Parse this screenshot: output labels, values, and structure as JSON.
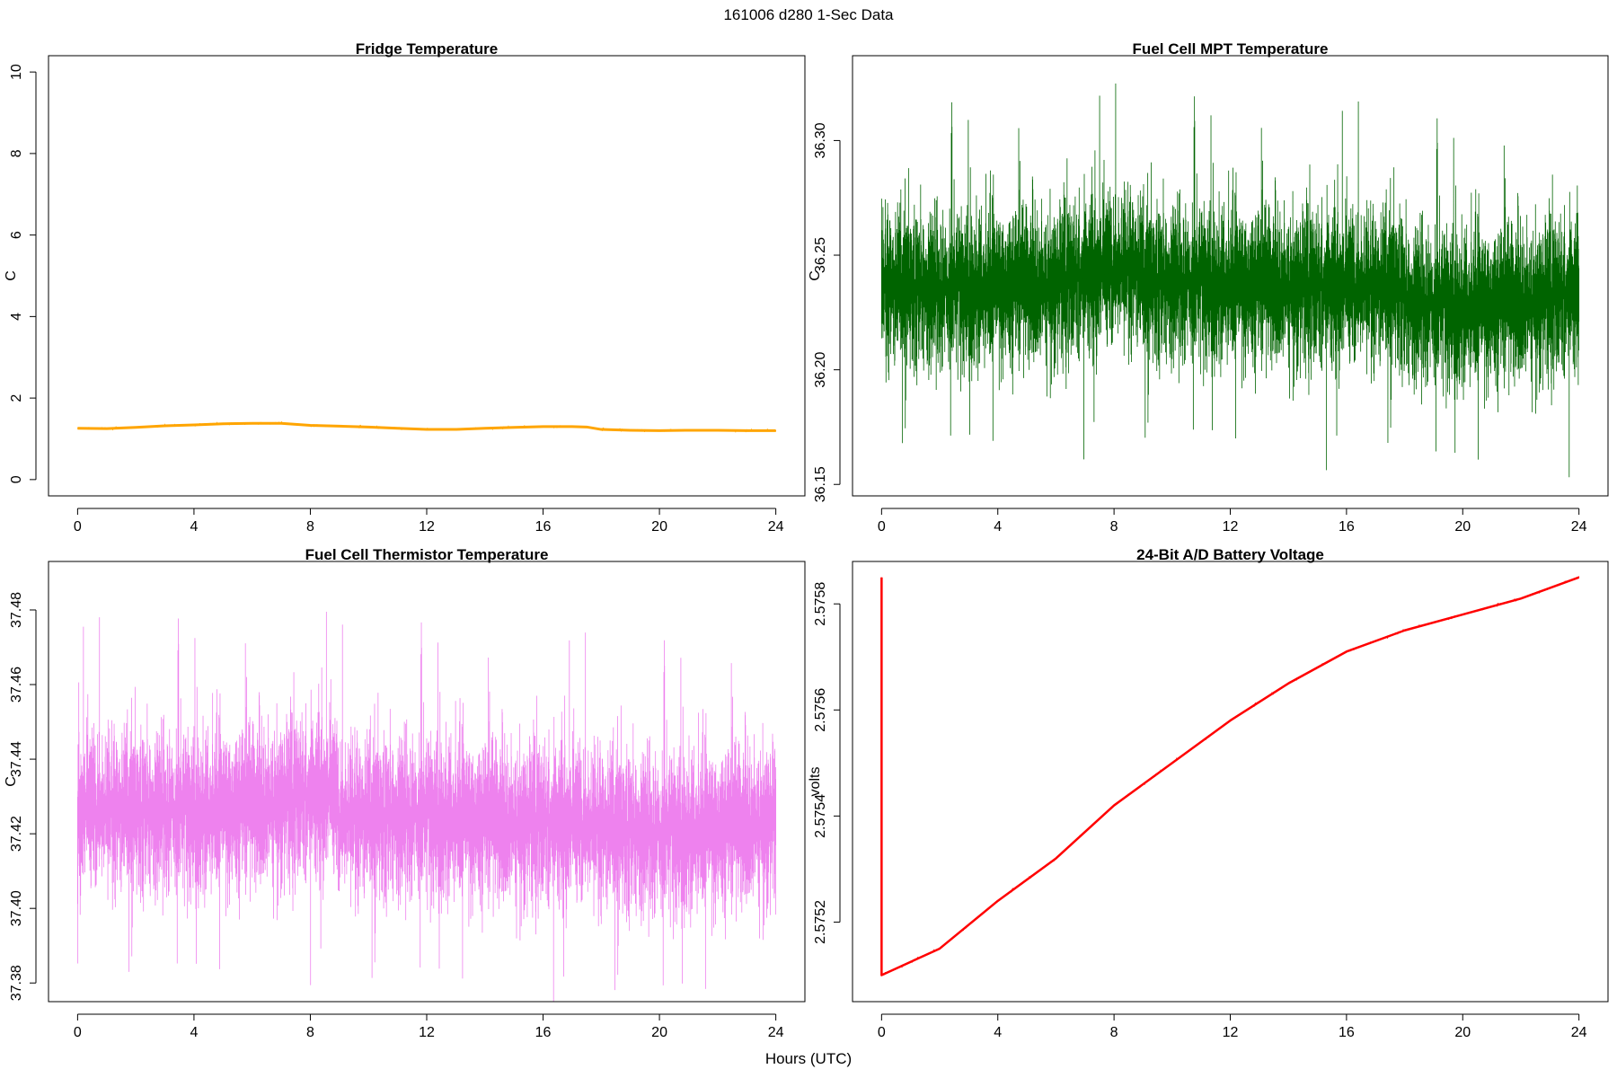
{
  "suptitle": "161006   d280   1-Sec Data",
  "xlabel": "Hours (UTC)",
  "chart_data": [
    {
      "type": "line",
      "title": "Fridge Temperature",
      "xlabel": "Hours (UTC)",
      "ylabel": "C",
      "xlim": [
        -1.0,
        25.0
      ],
      "ylim": [
        -0.4,
        10.4
      ],
      "xticks": [
        0,
        4,
        8,
        12,
        16,
        20,
        24
      ],
      "yticks": [
        0,
        2,
        4,
        6,
        8,
        10
      ],
      "ytick_labels": [
        "0",
        "2",
        "4",
        "6",
        "8",
        "10"
      ],
      "grid": false,
      "series": [
        {
          "color": "#FFA500",
          "noise": 0.02,
          "spike": null,
          "x": [
            0,
            1,
            2,
            3,
            4,
            5,
            6,
            7,
            8,
            9,
            10,
            11,
            12,
            13,
            14,
            15,
            16,
            17,
            17.5,
            18,
            19,
            20,
            21,
            22,
            23,
            24
          ],
          "y": [
            1.26,
            1.25,
            1.28,
            1.32,
            1.34,
            1.37,
            1.38,
            1.38,
            1.33,
            1.31,
            1.29,
            1.26,
            1.23,
            1.23,
            1.26,
            1.28,
            1.3,
            1.3,
            1.29,
            1.23,
            1.21,
            1.2,
            1.21,
            1.21,
            1.2,
            1.2
          ]
        }
      ]
    },
    {
      "type": "line",
      "title": "Fuel Cell MPT Temperature",
      "xlabel": "Hours (UTC)",
      "ylabel": "C",
      "xlim": [
        -1.0,
        25.0
      ],
      "ylim": [
        36.145,
        36.337
      ],
      "xticks": [
        0,
        4,
        8,
        12,
        16,
        20,
        24
      ],
      "yticks": [
        36.15,
        36.2,
        36.25,
        36.3
      ],
      "ytick_labels": [
        "36.15",
        "36.20",
        "36.25",
        "36.30"
      ],
      "grid": false,
      "series": [
        {
          "color": "#006400",
          "noise": 0.033,
          "spike": null,
          "x": [
            0,
            2,
            4,
            6,
            8,
            8.8,
            9,
            12,
            14,
            16,
            17.9,
            18,
            20,
            24
          ],
          "y": [
            36.236,
            36.235,
            36.237,
            36.238,
            36.243,
            36.244,
            36.238,
            36.238,
            36.237,
            36.235,
            36.236,
            36.229,
            36.228,
            36.233
          ]
        }
      ]
    },
    {
      "type": "line",
      "title": "Fuel Cell Thermistor Temperature",
      "xlabel": "Hours (UTC)",
      "ylabel": "C",
      "xlim": [
        -1.0,
        25.0
      ],
      "ylim": [
        37.375,
        37.493
      ],
      "xticks": [
        0,
        4,
        8,
        12,
        16,
        20,
        24
      ],
      "yticks": [
        37.38,
        37.4,
        37.42,
        37.44,
        37.46,
        37.48
      ],
      "ytick_labels": [
        "37.38",
        "37.40",
        "37.42",
        "37.44",
        "37.46",
        "37.48"
      ],
      "grid": false,
      "series": [
        {
          "color": "#EE82EE",
          "noise": 0.021,
          "spike": null,
          "x": [
            0,
            4,
            8,
            8.8,
            9,
            12,
            16,
            20,
            24
          ],
          "y": [
            37.426,
            37.426,
            37.43,
            37.43,
            37.424,
            37.425,
            37.423,
            37.42,
            37.424
          ]
        }
      ]
    },
    {
      "type": "line",
      "title": "24-Bit A/D Battery Voltage",
      "xlabel": "Hours (UTC)",
      "ylabel": "volts",
      "xlim": [
        -1.0,
        25.0
      ],
      "ylim": [
        2.57505,
        2.57588
      ],
      "xticks": [
        0,
        4,
        8,
        12,
        16,
        20,
        24
      ],
      "yticks": [
        2.5752,
        2.5754,
        2.5756,
        2.5758
      ],
      "ytick_labels": [
        "2.5752",
        "2.5754",
        "2.5756",
        "2.5758"
      ],
      "grid": false,
      "series": [
        {
          "color": "#FF0000",
          "noise": 1.5e-06,
          "spike": {
            "x": 0.0,
            "y": 2.57585
          },
          "x": [
            0,
            2,
            4,
            6,
            8,
            10,
            12,
            14,
            16,
            18,
            20,
            22,
            24
          ],
          "y": [
            2.5751,
            2.57515,
            2.57524,
            2.57532,
            2.57542,
            2.5755,
            2.57558,
            2.57565,
            2.57571,
            2.57575,
            2.57578,
            2.57581,
            2.57585
          ]
        }
      ]
    }
  ]
}
